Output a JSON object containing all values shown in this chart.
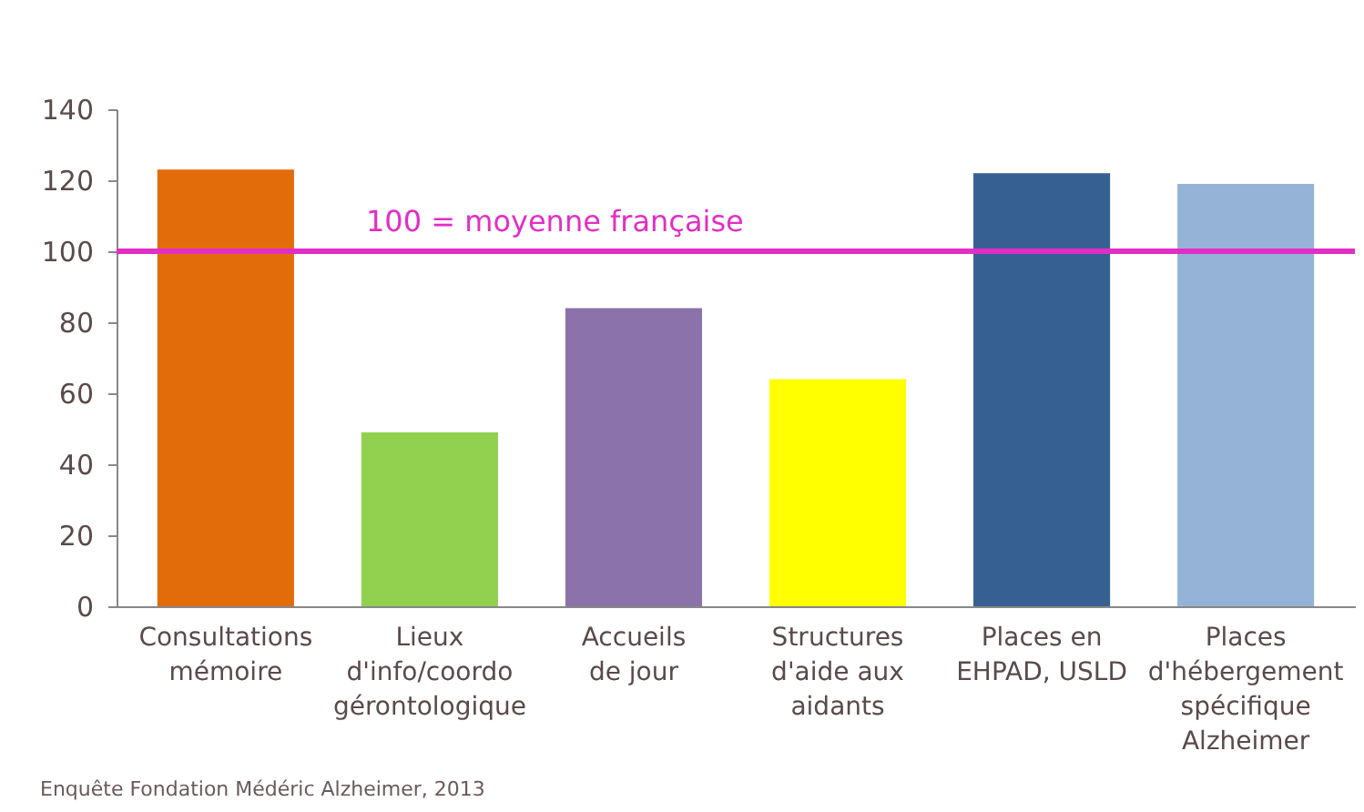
{
  "chart_data": {
    "type": "bar",
    "categories": [
      "Consultations\nmémoire",
      "Lieux\nd'info/coordo\ngérontologique",
      "Accueils\nde jour",
      "Structures\nd'aide aux\naidants",
      "Places en\nEHPAD, USLD",
      "Places\nd'hébergement\nspécifique\nAlzheimer"
    ],
    "values": [
      123,
      49,
      84,
      64,
      122,
      119
    ],
    "colors": [
      "#e36c0a",
      "#92d050",
      "#8b72aa",
      "#ffff00",
      "#366092",
      "#95b3d7"
    ],
    "ylim": [
      0,
      140
    ],
    "yticks": [
      0,
      20,
      40,
      60,
      80,
      100,
      120,
      140
    ],
    "grid": false,
    "ref_lines": [
      {
        "axis": "y",
        "value": 100,
        "label": "100 = moyenne française",
        "color": "#e22ec6"
      }
    ],
    "annotations": [
      "Enquête Fondation Médéric Alzheimer, 2013"
    ]
  }
}
